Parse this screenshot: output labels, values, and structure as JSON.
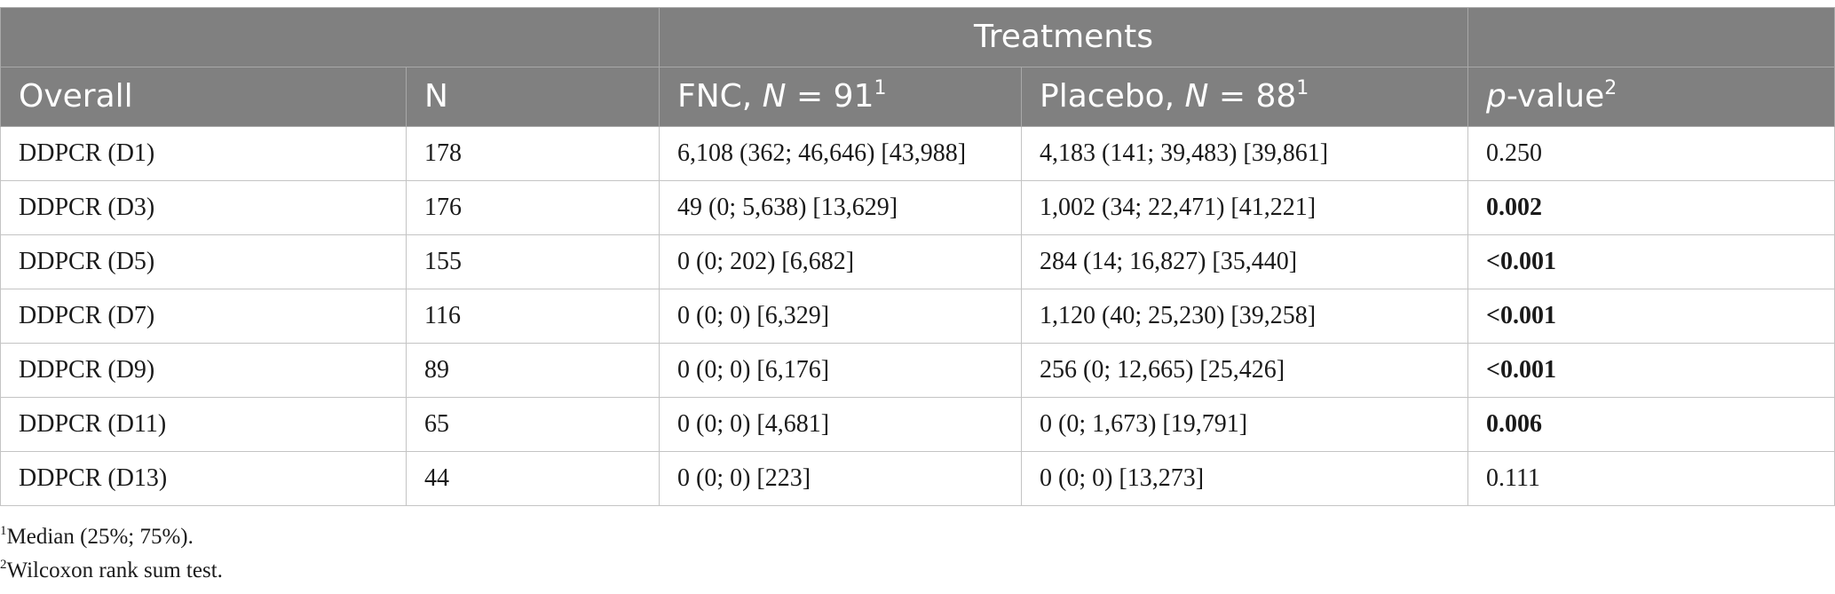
{
  "table": {
    "group_header": "Treatments",
    "headers": {
      "overall": "Overall",
      "n": "N",
      "fnc_prefix": "FNC, ",
      "fnc_N": "N",
      "fnc_suffix": " = 91",
      "fnc_sup": "1",
      "placebo_prefix": "Placebo, ",
      "placebo_N": "N",
      "placebo_suffix": " = 88",
      "placebo_sup": "1",
      "p_italic": "p",
      "p_suffix": "-value",
      "p_sup": "2"
    },
    "rows": [
      {
        "overall": "DDPCR (D1)",
        "n": "178",
        "fnc": "6,108 (362; 46,646) [43,988]",
        "placebo": "4,183 (141; 39,483) [39,861]",
        "p": "0.250",
        "p_bold": false
      },
      {
        "overall": "DDPCR (D3)",
        "n": "176",
        "fnc": "49 (0; 5,638) [13,629]",
        "placebo": "1,002 (34; 22,471) [41,221]",
        "p": "0.002",
        "p_bold": true
      },
      {
        "overall": "DDPCR (D5)",
        "n": "155",
        "fnc": "0 (0; 202) [6,682]",
        "placebo": "284 (14; 16,827) [35,440]",
        "p": "<0.001",
        "p_bold": true
      },
      {
        "overall": "DDPCR (D7)",
        "n": "116",
        "fnc": "0 (0; 0) [6,329]",
        "placebo": "1,120 (40; 25,230) [39,258]",
        "p": "<0.001",
        "p_bold": true
      },
      {
        "overall": "DDPCR (D9)",
        "n": "89",
        "fnc": "0 (0; 0) [6,176]",
        "placebo": "256 (0; 12,665) [25,426]",
        "p": "<0.001",
        "p_bold": true
      },
      {
        "overall": "DDPCR (D11)",
        "n": "65",
        "fnc": "0 (0; 0) [4,681]",
        "placebo": "0 (0; 1,673) [19,791]",
        "p": "0.006",
        "p_bold": true
      },
      {
        "overall": "DDPCR (D13)",
        "n": "44",
        "fnc": "0 (0; 0) [223]",
        "placebo": "0 (0; 0) [13,273]",
        "p": "0.111",
        "p_bold": false
      }
    ]
  },
  "footnotes": [
    {
      "sup": "1",
      "text": "Median (25%; 75%)."
    },
    {
      "sup": "2",
      "text": "Wilcoxon rank sum test."
    }
  ],
  "colors": {
    "header_bg": "#808080",
    "header_text": "#ffffff",
    "grid": "#c4c4c4"
  }
}
